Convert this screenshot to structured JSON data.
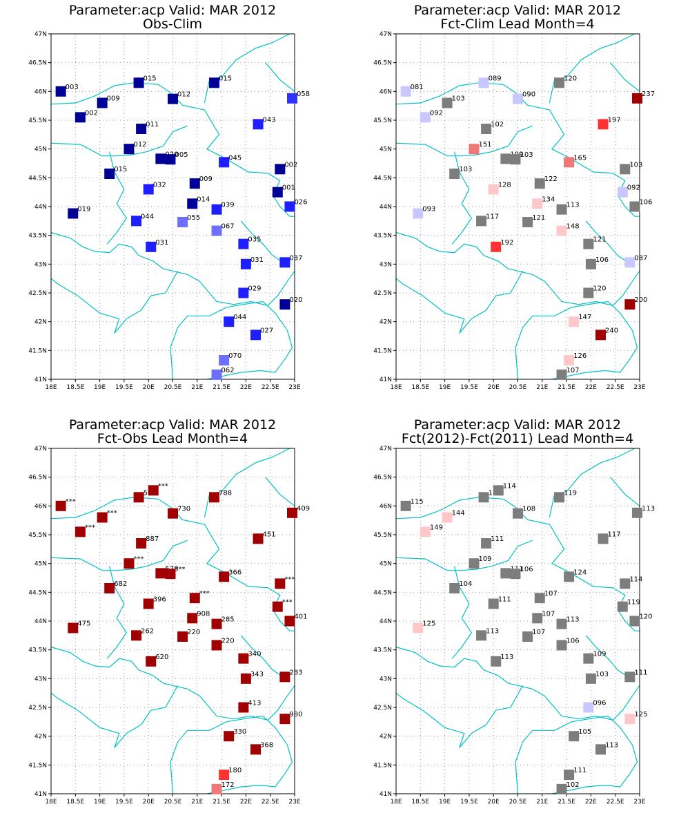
{
  "colors": {
    "grid": "#999999",
    "coast": "#00c0c8",
    "frame": "#000000"
  },
  "map": {
    "lon_range": [
      18,
      23
    ],
    "lat_range": [
      41,
      47
    ],
    "xticks": [
      "18E",
      "18.5E",
      "19E",
      "19.5E",
      "20E",
      "20.5E",
      "21E",
      "21.5E",
      "22E",
      "22.5E",
      "23E"
    ],
    "yticks": [
      "41N",
      "41.5N",
      "42N",
      "42.5N",
      "43N",
      "43.5N",
      "44N",
      "44.5N",
      "45N",
      "45.5N",
      "46N",
      "46.5N",
      "47N"
    ]
  },
  "stations": [
    {
      "lon": 18.2,
      "lat": 46.0
    },
    {
      "lon": 18.6,
      "lat": 45.55
    },
    {
      "lon": 19.05,
      "lat": 45.8
    },
    {
      "lon": 19.8,
      "lat": 46.15
    },
    {
      "lon": 20.5,
      "lat": 45.87
    },
    {
      "lon": 21.35,
      "lat": 46.15
    },
    {
      "lon": 22.95,
      "lat": 45.88
    },
    {
      "lon": 19.85,
      "lat": 45.35
    },
    {
      "lon": 19.6,
      "lat": 45.0
    },
    {
      "lon": 20.25,
      "lat": 44.83
    },
    {
      "lon": 20.45,
      "lat": 44.82
    },
    {
      "lon": 21.55,
      "lat": 44.77
    },
    {
      "lon": 22.25,
      "lat": 45.43
    },
    {
      "lon": 22.7,
      "lat": 44.65
    },
    {
      "lon": 19.2,
      "lat": 44.57
    },
    {
      "lon": 20.0,
      "lat": 44.3
    },
    {
      "lon": 20.95,
      "lat": 44.4
    },
    {
      "lon": 22.65,
      "lat": 44.25
    },
    {
      "lon": 18.45,
      "lat": 43.88
    },
    {
      "lon": 19.75,
      "lat": 43.75
    },
    {
      "lon": 20.9,
      "lat": 44.05
    },
    {
      "lon": 21.4,
      "lat": 43.95
    },
    {
      "lon": 22.9,
      "lat": 44.0
    },
    {
      "lon": 20.7,
      "lat": 43.73
    },
    {
      "lon": 21.4,
      "lat": 43.58
    },
    {
      "lon": 20.05,
      "lat": 43.3
    },
    {
      "lon": 21.95,
      "lat": 43.35
    },
    {
      "lon": 22.0,
      "lat": 43.0
    },
    {
      "lon": 22.8,
      "lat": 43.03
    },
    {
      "lon": 21.95,
      "lat": 42.5
    },
    {
      "lon": 22.8,
      "lat": 42.3
    },
    {
      "lon": 21.65,
      "lat": 42.0
    },
    {
      "lon": 22.2,
      "lat": 41.77
    },
    {
      "lon": 21.55,
      "lat": 41.33
    },
    {
      "lon": 21.4,
      "lat": 41.08
    }
  ],
  "panels": [
    {
      "title_line1": "Parameter:acp Valid: MAR 2012",
      "title_line2": "Obs-Clim",
      "values": [
        {
          "text": "003",
          "color": "#000096"
        },
        {
          "text": "002",
          "color": "#000096"
        },
        {
          "text": "009",
          "color": "#000096"
        },
        {
          "text": "015",
          "color": "#000096"
        },
        {
          "text": "012",
          "color": "#000096"
        },
        {
          "text": "015",
          "color": "#000096"
        },
        {
          "text": "058",
          "color": "#3232ff"
        },
        {
          "text": "011",
          "color": "#000096"
        },
        {
          "text": "012",
          "color": "#000096"
        },
        {
          "text": "020",
          "color": "#000096"
        },
        {
          "text": "005",
          "color": "#000096"
        },
        {
          "text": "045",
          "color": "#1e1eff"
        },
        {
          "text": "043",
          "color": "#1e1eff"
        },
        {
          "text": "002",
          "color": "#000096"
        },
        {
          "text": "015",
          "color": "#000096"
        },
        {
          "text": "032",
          "color": "#1e1eff"
        },
        {
          "text": "009",
          "color": "#000096"
        },
        {
          "text": "001",
          "color": "#000096"
        },
        {
          "text": "019",
          "color": "#000096"
        },
        {
          "text": "044",
          "color": "#1e1eff"
        },
        {
          "text": "014",
          "color": "#000096"
        },
        {
          "text": "039",
          "color": "#1e1eff"
        },
        {
          "text": "026",
          "color": "#1e1eff"
        },
        {
          "text": "055",
          "color": "#6e6eff"
        },
        {
          "text": "067",
          "color": "#6e6eff"
        },
        {
          "text": "031",
          "color": "#1e1eff"
        },
        {
          "text": "035",
          "color": "#1e1eff"
        },
        {
          "text": "031",
          "color": "#1e1eff"
        },
        {
          "text": "037",
          "color": "#1e1eff"
        },
        {
          "text": "029",
          "color": "#1e1eff"
        },
        {
          "text": "020",
          "color": "#000096"
        },
        {
          "text": "044",
          "color": "#1e1eff"
        },
        {
          "text": "027",
          "color": "#1e1eff"
        },
        {
          "text": "070",
          "color": "#6e6eff"
        },
        {
          "text": "062",
          "color": "#6e6eff"
        }
      ]
    },
    {
      "title_line1": "Parameter:acp Valid: MAR 2012",
      "title_line2": "Fct-Clim Lead Month=4",
      "values": [
        {
          "text": "081",
          "color": "#c8c8ff"
        },
        {
          "text": "092",
          "color": "#c8c8ff"
        },
        {
          "text": "103",
          "color": "#7d7d7d"
        },
        {
          "text": "089",
          "color": "#c8c8ff"
        },
        {
          "text": "090",
          "color": "#c8c8ff"
        },
        {
          "text": "120",
          "color": "#7d7d7d"
        },
        {
          "text": "237",
          "color": "#a00000"
        },
        {
          "text": "102",
          "color": "#7d7d7d"
        },
        {
          "text": "151",
          "color": "#f07878"
        },
        {
          "text": "109",
          "color": "#7d7d7d"
        },
        {
          "text": "103",
          "color": "#7d7d7d"
        },
        {
          "text": "165",
          "color": "#f07878"
        },
        {
          "text": "197",
          "color": "#ff3232"
        },
        {
          "text": "103",
          "color": "#7d7d7d"
        },
        {
          "text": "103",
          "color": "#7d7d7d"
        },
        {
          "text": "128",
          "color": "#ffc8c8"
        },
        {
          "text": "122",
          "color": "#7d7d7d"
        },
        {
          "text": "092",
          "color": "#c8c8ff"
        },
        {
          "text": "093",
          "color": "#c8c8ff"
        },
        {
          "text": "117",
          "color": "#7d7d7d"
        },
        {
          "text": "134",
          "color": "#ffc8c8"
        },
        {
          "text": "113",
          "color": "#7d7d7d"
        },
        {
          "text": "106",
          "color": "#7d7d7d"
        },
        {
          "text": "121",
          "color": "#7d7d7d"
        },
        {
          "text": "148",
          "color": "#ffc8c8"
        },
        {
          "text": "192",
          "color": "#ff3232"
        },
        {
          "text": "121",
          "color": "#7d7d7d"
        },
        {
          "text": "106",
          "color": "#7d7d7d"
        },
        {
          "text": "087",
          "color": "#c8c8ff"
        },
        {
          "text": "120",
          "color": "#7d7d7d"
        },
        {
          "text": "200",
          "color": "#a00000"
        },
        {
          "text": "147",
          "color": "#ffc8c8"
        },
        {
          "text": "240",
          "color": "#a00000"
        },
        {
          "text": "126",
          "color": "#ffc8c8"
        },
        {
          "text": "107",
          "color": "#7d7d7d"
        }
      ]
    },
    {
      "title_line1": "Parameter:acp Valid: MAR 2012",
      "title_line2": "Fct-Obs Lead Month=4",
      "values": [
        {
          "text": "***",
          "color": "#a00000"
        },
        {
          "text": "***",
          "color": "#a00000"
        },
        {
          "text": "***",
          "color": "#a00000"
        },
        {
          "text": "568",
          "color": "#a00000"
        },
        {
          "text": "730",
          "color": "#a00000"
        },
        {
          "text": "788",
          "color": "#a00000"
        },
        {
          "text": "409",
          "color": "#a00000"
        },
        {
          "text": "887",
          "color": "#a00000"
        },
        {
          "text": "***",
          "color": "#a00000"
        },
        {
          "text": "578",
          "color": "#a00000"
        },
        {
          "text": "***",
          "color": "#a00000"
        },
        {
          "text": "366",
          "color": "#a00000"
        },
        {
          "text": "451",
          "color": "#a00000"
        },
        {
          "text": "***",
          "color": "#a00000"
        },
        {
          "text": "682",
          "color": "#a00000"
        },
        {
          "text": "396",
          "color": "#a00000"
        },
        {
          "text": "***",
          "color": "#a00000"
        },
        {
          "text": "***",
          "color": "#a00000"
        },
        {
          "text": "475",
          "color": "#a00000"
        },
        {
          "text": "262",
          "color": "#a00000"
        },
        {
          "text": "908",
          "color": "#a00000"
        },
        {
          "text": "285",
          "color": "#a00000"
        },
        {
          "text": "401",
          "color": "#a00000"
        },
        {
          "text": "220",
          "color": "#a00000"
        },
        {
          "text": "220",
          "color": "#a00000"
        },
        {
          "text": "620",
          "color": "#a00000"
        },
        {
          "text": "340",
          "color": "#a00000"
        },
        {
          "text": "343",
          "color": "#a00000"
        },
        {
          "text": "283",
          "color": "#a00000"
        },
        {
          "text": "413",
          "color": "#a00000"
        },
        {
          "text": "980",
          "color": "#a00000"
        },
        {
          "text": "330",
          "color": "#a00000"
        },
        {
          "text": "368",
          "color": "#a00000"
        },
        {
          "text": "180",
          "color": "#ff3232"
        },
        {
          "text": "172",
          "color": "#f07878"
        }
      ],
      "extra": [
        {
          "lon": 20.1,
          "lat": 46.27,
          "text": "***",
          "color": "#a00000"
        }
      ]
    },
    {
      "title_line1": "Parameter:acp Valid: MAR 2012",
      "title_line2": "Fct(2012)-Fct(2011) Lead Month=4",
      "values": [
        {
          "text": "115",
          "color": "#7d7d7d"
        },
        {
          "text": "149",
          "color": "#ffc8c8"
        },
        {
          "text": "144",
          "color": "#ffc8c8"
        },
        {
          "text": "121",
          "color": "#7d7d7d"
        },
        {
          "text": "108",
          "color": "#7d7d7d"
        },
        {
          "text": "119",
          "color": "#7d7d7d"
        },
        {
          "text": "113",
          "color": "#7d7d7d"
        },
        {
          "text": "111",
          "color": "#7d7d7d"
        },
        {
          "text": "109",
          "color": "#7d7d7d"
        },
        {
          "text": "111",
          "color": "#7d7d7d"
        },
        {
          "text": "106",
          "color": "#7d7d7d"
        },
        {
          "text": "124",
          "color": "#7d7d7d"
        },
        {
          "text": "117",
          "color": "#7d7d7d"
        },
        {
          "text": "114",
          "color": "#7d7d7d"
        },
        {
          "text": "104",
          "color": "#7d7d7d"
        },
        {
          "text": "111",
          "color": "#7d7d7d"
        },
        {
          "text": "107",
          "color": "#7d7d7d"
        },
        {
          "text": "119",
          "color": "#7d7d7d"
        },
        {
          "text": "125",
          "color": "#ffc8c8"
        },
        {
          "text": "113",
          "color": "#7d7d7d"
        },
        {
          "text": "107",
          "color": "#7d7d7d"
        },
        {
          "text": "113",
          "color": "#7d7d7d"
        },
        {
          "text": "120",
          "color": "#7d7d7d"
        },
        {
          "text": "107",
          "color": "#7d7d7d"
        },
        {
          "text": "106",
          "color": "#7d7d7d"
        },
        {
          "text": "113",
          "color": "#7d7d7d"
        },
        {
          "text": "109",
          "color": "#7d7d7d"
        },
        {
          "text": "103",
          "color": "#7d7d7d"
        },
        {
          "text": "111",
          "color": "#7d7d7d"
        },
        {
          "text": "096",
          "color": "#c8c8ff"
        },
        {
          "text": "125",
          "color": "#ffc8c8"
        },
        {
          "text": "105",
          "color": "#7d7d7d"
        },
        {
          "text": "113",
          "color": "#7d7d7d"
        },
        {
          "text": "111",
          "color": "#7d7d7d"
        },
        {
          "text": "102",
          "color": "#7d7d7d"
        }
      ],
      "extra": [
        {
          "lon": 20.1,
          "lat": 46.27,
          "text": "114",
          "color": "#7d7d7d"
        }
      ]
    }
  ]
}
